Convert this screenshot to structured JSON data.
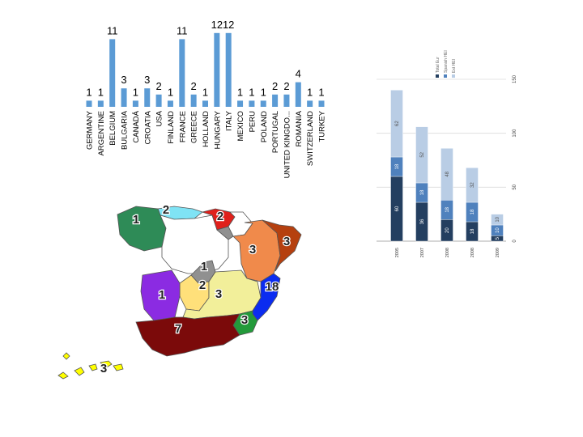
{
  "chart_data": [
    {
      "type": "bar",
      "categories": [
        "GERMANY",
        "ARGENTINE",
        "BELGIUM",
        "BULGARIA",
        "CANADÁ",
        "CROATIA",
        "USA",
        "FINLAND",
        "FRANCE",
        "GREECE",
        "HOLLAND",
        "HUNGARY",
        "ITALY",
        "MEXICO",
        "PERU",
        "POLAND",
        "PORTUGAL",
        "UNITED KINGDO...",
        "ROMANIA",
        "SWITZERLAND",
        "TURKEY"
      ],
      "values": [
        1,
        1,
        11,
        3,
        1,
        3,
        2,
        1,
        11,
        2,
        1,
        12,
        12,
        1,
        1,
        1,
        2,
        2,
        4,
        1,
        1
      ],
      "color": "#5b9bd5"
    },
    {
      "type": "bar",
      "stacked": true,
      "categories": [
        "2005",
        "2007",
        "2008",
        "2008",
        "2009"
      ],
      "series": [
        {
          "values": [
            60,
            36,
            20,
            18,
            5
          ],
          "color": "#243f60"
        },
        {
          "values": [
            18,
            18,
            18,
            18,
            10
          ],
          "color": "#4f81bd"
        },
        {
          "values": [
            62,
            52,
            48,
            32,
            10
          ],
          "color": "#b9cde5"
        }
      ],
      "ylim": [
        0,
        150
      ],
      "yticks": [
        "0",
        "50",
        "100",
        "150"
      ],
      "legend": [
        "Total Eur",
        "Spanish HEI",
        "Ext HEI"
      ],
      "legend_position": "top-right"
    },
    {
      "type": "map",
      "regions": [
        {
          "name": "galicia",
          "value": "1",
          "color": "#2e8b57"
        },
        {
          "name": "asturias",
          "value": "2",
          "color": "#7fe3f5"
        },
        {
          "name": "basque-country",
          "value": "2",
          "color": "#e0201b"
        },
        {
          "name": "navarre",
          "value": "",
          "color": "#ffffff"
        },
        {
          "name": "aragon",
          "value": "3",
          "color": "#f08a4b"
        },
        {
          "name": "catalonia",
          "value": "3",
          "color": "#b5400f"
        },
        {
          "name": "castile-leon",
          "value": "",
          "color": "#ffffff"
        },
        {
          "name": "la-rioja",
          "value": "1",
          "color": "#909090"
        },
        {
          "name": "madrid",
          "value": "2",
          "color": "#ffe07a"
        },
        {
          "name": "extremadura",
          "value": "1",
          "color": "#8b2be2"
        },
        {
          "name": "castile-la-mancha",
          "value": "3",
          "color": "#f2ef9a"
        },
        {
          "name": "valencia",
          "value": "18",
          "color": "#0b2cf0"
        },
        {
          "name": "murcia",
          "value": "3",
          "color": "#239a3a"
        },
        {
          "name": "andalusia",
          "value": "7",
          "color": "#7b0a0a"
        },
        {
          "name": "canary-islands",
          "value": "3",
          "color": "#ffff00"
        }
      ]
    }
  ]
}
